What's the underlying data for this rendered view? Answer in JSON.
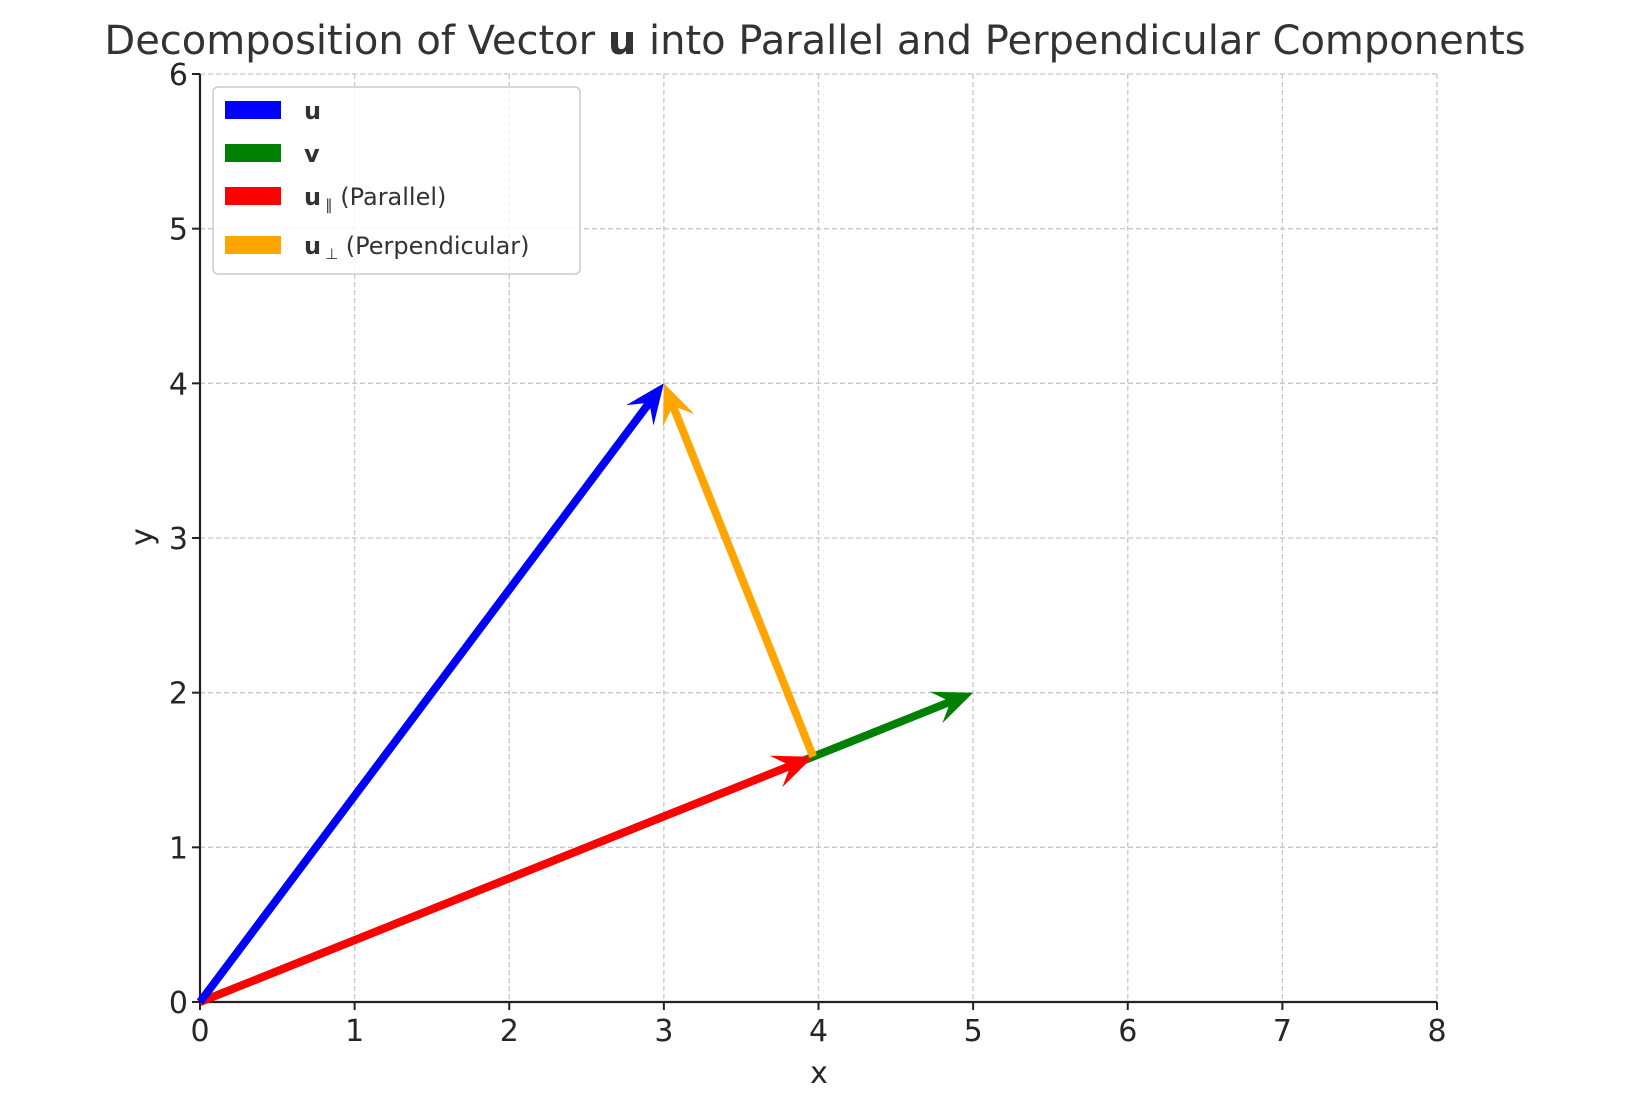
{
  "chart_data": {
    "type": "line",
    "title": {
      "prefix": "Decomposition of Vector ",
      "bold": "u",
      "suffix": " into Parallel and Perpendicular Components"
    },
    "xlabel": "x",
    "ylabel": "y",
    "xlim": [
      0,
      8
    ],
    "ylim": [
      0,
      6
    ],
    "xticks": [
      "0",
      "1",
      "2",
      "3",
      "4",
      "5",
      "6",
      "7",
      "8"
    ],
    "yticks": [
      "0",
      "1",
      "2",
      "3",
      "4",
      "5",
      "6"
    ],
    "grid": true,
    "legend_position": "upper-left",
    "vectors": [
      {
        "key": "v",
        "from": [
          0,
          0
        ],
        "to": [
          5,
          2
        ],
        "color": "#008000"
      },
      {
        "key": "u_par",
        "from": [
          0,
          0
        ],
        "to": [
          3.9655,
          1.5862
        ],
        "color": "#ff0000"
      },
      {
        "key": "u",
        "from": [
          0,
          0
        ],
        "to": [
          3,
          4
        ],
        "color": "#0000ff"
      },
      {
        "key": "u_perp",
        "from": [
          3.9655,
          1.5862
        ],
        "to": [
          3,
          4
        ],
        "color": "#ffa500"
      }
    ],
    "legend": [
      {
        "key": "u",
        "bold": "u",
        "sub": "",
        "text": "",
        "color": "#0000ff"
      },
      {
        "key": "v",
        "bold": "v",
        "sub": "",
        "text": "",
        "color": "#008000"
      },
      {
        "key": "u_par",
        "bold": "u",
        "sub": "∥",
        "text": " (Parallel)",
        "color": "#ff0000"
      },
      {
        "key": "u_perp",
        "bold": "u",
        "sub": "⊥",
        "text": " (Perpendicular)",
        "color": "#ffa500"
      }
    ]
  }
}
